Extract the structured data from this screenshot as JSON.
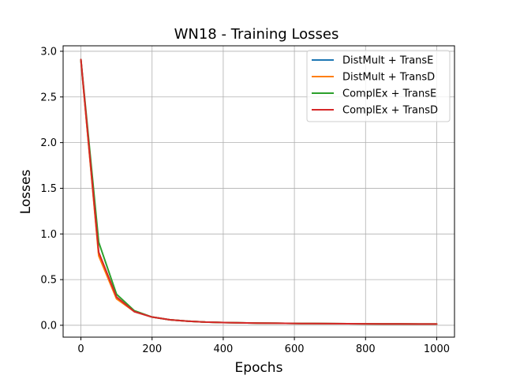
{
  "chart_data": {
    "type": "line",
    "title": "WN18 - Training Losses",
    "xlabel": "Epochs",
    "ylabel": "Losses",
    "xlim": [
      -50,
      1050
    ],
    "ylim": [
      -0.13,
      3.06
    ],
    "xticks": [
      0,
      200,
      400,
      600,
      800,
      1000
    ],
    "yticks": [
      0.0,
      0.5,
      1.0,
      1.5,
      2.0,
      2.5,
      3.0
    ],
    "xtick_labels": [
      "0",
      "200",
      "400",
      "600",
      "800",
      "1000"
    ],
    "ytick_labels": [
      "0.0",
      "0.5",
      "1.0",
      "1.5",
      "2.0",
      "2.5",
      "3.0"
    ],
    "grid": true,
    "legend_position": "top-right",
    "x": [
      0,
      50,
      100,
      150,
      200,
      250,
      300,
      350,
      400,
      450,
      500,
      550,
      600,
      650,
      700,
      750,
      800,
      850,
      900,
      950,
      1000
    ],
    "series": [
      {
        "name": "DistMult + TransE",
        "color": "#1f77b4",
        "values": [
          2.9,
          0.78,
          0.3,
          0.15,
          0.09,
          0.06,
          0.045,
          0.035,
          0.03,
          0.027,
          0.024,
          0.022,
          0.02,
          0.019,
          0.018,
          0.017,
          0.016,
          0.015,
          0.015,
          0.014,
          0.014
        ]
      },
      {
        "name": "DistMult + TransD",
        "color": "#ff7f0e",
        "values": [
          2.9,
          0.76,
          0.29,
          0.15,
          0.09,
          0.06,
          0.045,
          0.035,
          0.03,
          0.027,
          0.024,
          0.022,
          0.02,
          0.019,
          0.018,
          0.017,
          0.016,
          0.015,
          0.015,
          0.014,
          0.014
        ]
      },
      {
        "name": "ComplEx + TransE",
        "color": "#2ca02c",
        "values": [
          2.91,
          0.91,
          0.34,
          0.16,
          0.09,
          0.06,
          0.045,
          0.035,
          0.03,
          0.027,
          0.024,
          0.022,
          0.02,
          0.019,
          0.018,
          0.017,
          0.016,
          0.015,
          0.015,
          0.014,
          0.014
        ]
      },
      {
        "name": "ComplEx + TransD",
        "color": "#d62728",
        "values": [
          2.91,
          0.8,
          0.31,
          0.15,
          0.09,
          0.06,
          0.045,
          0.035,
          0.03,
          0.027,
          0.024,
          0.022,
          0.02,
          0.019,
          0.018,
          0.017,
          0.016,
          0.015,
          0.015,
          0.014,
          0.014
        ]
      }
    ]
  }
}
